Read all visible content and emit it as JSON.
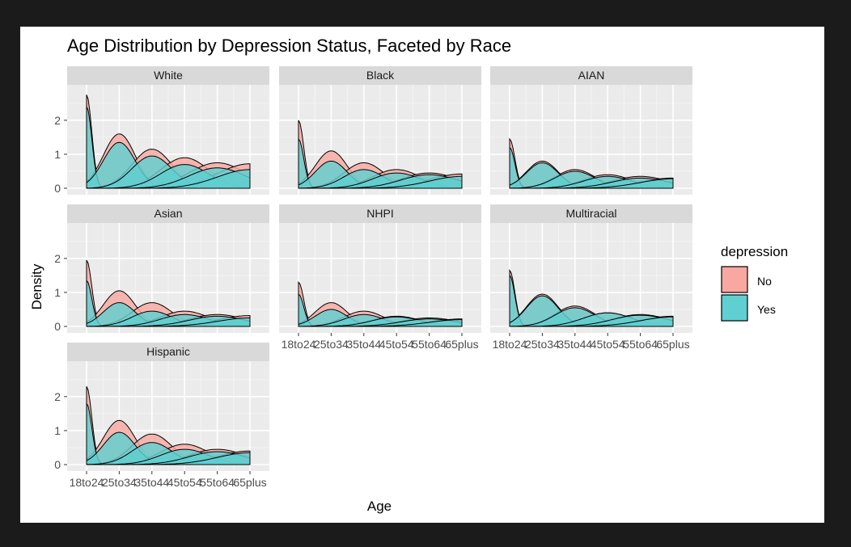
{
  "chart_data": {
    "type": "area",
    "title": "Age Distribution by Depression Status, Faceted by Race",
    "xlabel": "Age",
    "ylabel": "Density",
    "categories": [
      "18to24",
      "25to34",
      "35to44",
      "45to54",
      "55to64",
      "65plus"
    ],
    "x_tick_labels": [
      "18to24",
      "25to34",
      "35to44",
      "45to54",
      "55to64",
      "65plus"
    ],
    "y_ticks": [
      0,
      1,
      2
    ],
    "ylim": [
      0,
      2.9
    ],
    "grid": true,
    "legend": {
      "title": "depression",
      "position": "right",
      "entries": [
        {
          "label": "No",
          "color": "#f8a7a1"
        },
        {
          "label": "Yes",
          "color": "#5fcfd1"
        }
      ]
    },
    "colors": {
      "No": "#f8a7a1",
      "Yes": "#5fcfd1",
      "panel_bg": "#ebebeb",
      "strip_bg": "#d9d9d9"
    },
    "facets": [
      {
        "label": "White",
        "series": [
          {
            "name": "No",
            "peaks": [
              2.75,
              1.6,
              1.15,
              0.9,
              0.75,
              0.72
            ]
          },
          {
            "name": "Yes",
            "peaks": [
              2.4,
              1.35,
              0.95,
              0.7,
              0.6,
              0.55
            ]
          }
        ]
      },
      {
        "label": "Black",
        "series": [
          {
            "name": "No",
            "peaks": [
              2.0,
              1.1,
              0.75,
              0.55,
              0.45,
              0.42
            ]
          },
          {
            "name": "Yes",
            "peaks": [
              1.45,
              0.8,
              0.55,
              0.45,
              0.4,
              0.35
            ]
          }
        ]
      },
      {
        "label": "AIAN",
        "series": [
          {
            "name": "No",
            "peaks": [
              1.45,
              0.8,
              0.55,
              0.4,
              0.35,
              0.3
            ]
          },
          {
            "name": "Yes",
            "peaks": [
              1.2,
              0.75,
              0.5,
              0.35,
              0.3,
              0.28
            ]
          }
        ]
      },
      {
        "label": "Asian",
        "series": [
          {
            "name": "No",
            "peaks": [
              1.95,
              1.05,
              0.7,
              0.45,
              0.35,
              0.32
            ]
          },
          {
            "name": "Yes",
            "peaks": [
              1.35,
              0.7,
              0.45,
              0.35,
              0.3,
              0.25
            ]
          }
        ]
      },
      {
        "label": "NHPI",
        "series": [
          {
            "name": "No",
            "peaks": [
              1.3,
              0.7,
              0.45,
              0.3,
              0.25,
              0.22
            ]
          },
          {
            "name": "Yes",
            "peaks": [
              0.95,
              0.5,
              0.35,
              0.28,
              0.22,
              0.2
            ]
          }
        ]
      },
      {
        "label": "Multiracial",
        "series": [
          {
            "name": "No",
            "peaks": [
              1.65,
              0.95,
              0.6,
              0.4,
              0.35,
              0.3
            ]
          },
          {
            "name": "Yes",
            "peaks": [
              1.5,
              0.9,
              0.55,
              0.4,
              0.33,
              0.28
            ]
          }
        ]
      },
      {
        "label": "Hispanic",
        "series": [
          {
            "name": "No",
            "peaks": [
              2.3,
              1.3,
              0.9,
              0.6,
              0.45,
              0.4
            ]
          },
          {
            "name": "Yes",
            "peaks": [
              1.8,
              0.95,
              0.65,
              0.45,
              0.38,
              0.35
            ]
          }
        ]
      }
    ]
  }
}
